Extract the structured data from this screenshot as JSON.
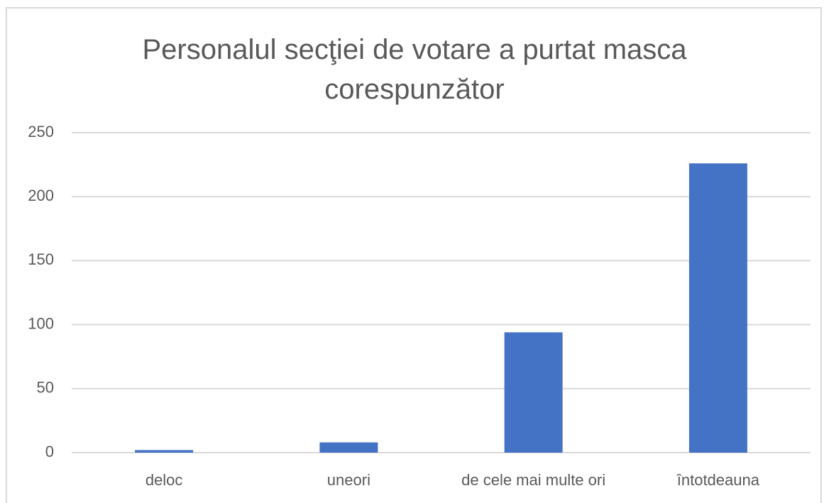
{
  "chart_data": {
    "type": "bar",
    "title": "Personalul secţiei de votare a purtat masca corespunzător",
    "categories": [
      "deloc",
      "uneori",
      "de cele mai multe ori",
      "întotdeauna"
    ],
    "values": [
      2,
      8,
      94,
      226
    ],
    "color": "#4472c4",
    "ylim": [
      0,
      250
    ],
    "yticks": [
      0,
      50,
      100,
      150,
      200,
      250
    ],
    "grid": true
  }
}
